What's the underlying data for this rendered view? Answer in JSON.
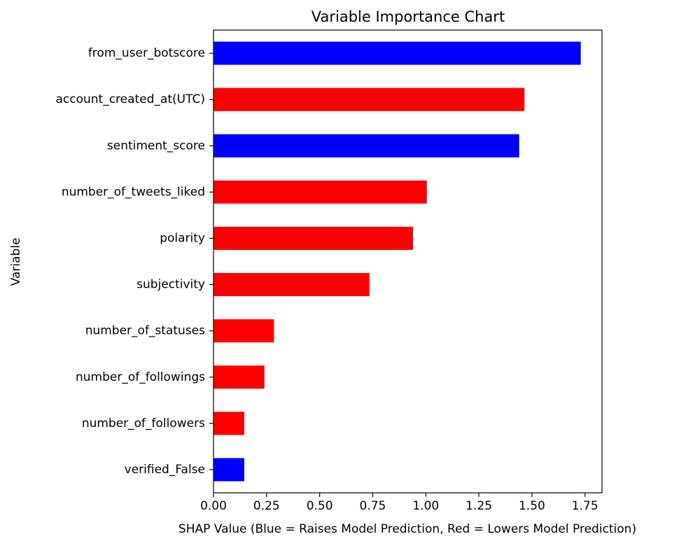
{
  "chart_data": {
    "type": "bar",
    "orientation": "horizontal",
    "title": "Variable Importance Chart",
    "xlabel": "SHAP Value (Blue = Raises Model Prediction, Red = Lowers Model Prediction)",
    "ylabel": "Variable",
    "xlim": [
      0,
      1.83
    ],
    "xticks": [
      0.0,
      0.25,
      0.5,
      0.75,
      1.0,
      1.25,
      1.5,
      1.75
    ],
    "xtick_labels": [
      "0.00",
      "0.25",
      "0.50",
      "0.75",
      "1.00",
      "1.25",
      "1.50",
      "1.75"
    ],
    "grid": false,
    "legend": "none",
    "colors": {
      "raises": "#0000ff",
      "lowers": "#ff0000"
    },
    "bars": [
      {
        "label": "from_user_botscore",
        "value": 1.73,
        "color": "#0000ff"
      },
      {
        "label": "account_created_at(UTC)",
        "value": 1.465,
        "color": "#ff0000"
      },
      {
        "label": "sentiment_score",
        "value": 1.44,
        "color": "#0000ff"
      },
      {
        "label": "number_of_tweets_liked",
        "value": 1.005,
        "color": "#ff0000"
      },
      {
        "label": "polarity",
        "value": 0.94,
        "color": "#ff0000"
      },
      {
        "label": "subjectivity",
        "value": 0.735,
        "color": "#ff0000"
      },
      {
        "label": "number_of_statuses",
        "value": 0.285,
        "color": "#ff0000"
      },
      {
        "label": "number_of_followings",
        "value": 0.24,
        "color": "#ff0000"
      },
      {
        "label": "number_of_followers",
        "value": 0.145,
        "color": "#ff0000"
      },
      {
        "label": "verified_False",
        "value": 0.145,
        "color": "#0000ff"
      }
    ]
  }
}
